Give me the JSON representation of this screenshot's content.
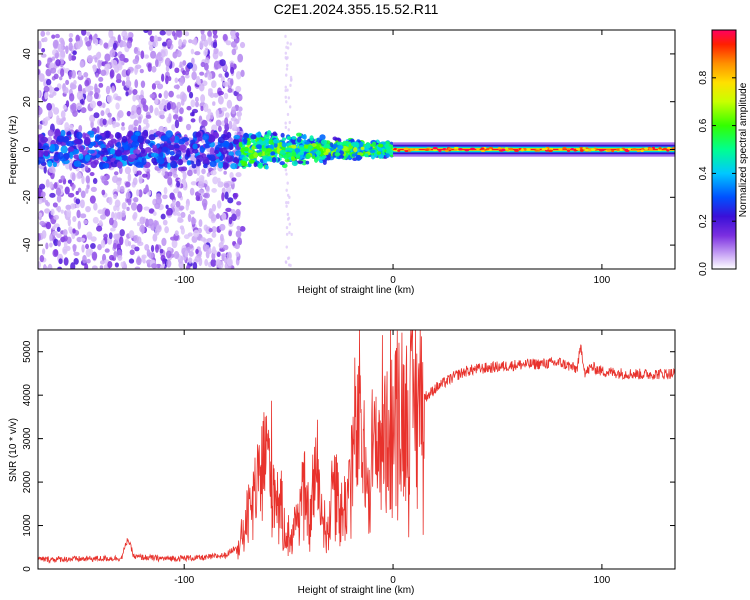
{
  "title": "C2E1.2024.355.15.52.R11",
  "chart_data": [
    {
      "type": "heatmap",
      "xlabel": "Height of straight line (km)",
      "ylabel": "Frequency (Hz)",
      "xlim": [
        -170,
        135
      ],
      "ylim": [
        -50,
        50
      ],
      "x_ticks": [
        -100,
        0,
        100
      ],
      "y_ticks": [
        -40,
        -20,
        0,
        20,
        40
      ],
      "colorbar": {
        "label": "Normalized spectral amplitude",
        "range": [
          0,
          1
        ],
        "ticks": [
          "0.0",
          "0.2",
          "0.4",
          "0.6",
          "0.8"
        ],
        "colors": [
          "#ffffff",
          "#c9a6f5",
          "#7b2fe0",
          "#3a10d8",
          "#0050ff",
          "#00c8ff",
          "#00ff90",
          "#33ff00",
          "#c8ff00",
          "#ffe000",
          "#ff9000",
          "#ff2000",
          "#ff0060"
        ]
      },
      "regions": [
        {
          "x": [
            -170,
            -73
          ],
          "freq_spread_hz": 50,
          "amplitude": 0.1
        },
        {
          "x": [
            -73,
            -30
          ],
          "freq_spread_hz": 8,
          "amplitude": 0.45
        },
        {
          "x": [
            -30,
            0
          ],
          "freq_spread_hz": 4,
          "amplitude": 0.6
        },
        {
          "x": [
            0,
            135
          ],
          "freq_spread_hz": 1,
          "amplitude": 0.95
        }
      ]
    },
    {
      "type": "line",
      "xlabel": "Height of straight line (km)",
      "ylabel": "SNR (10 * v/v)",
      "xlim": [
        -170,
        135
      ],
      "ylim": [
        0,
        5500
      ],
      "x_ticks": [
        -100,
        0,
        100
      ],
      "y_ticks": [
        0,
        1000,
        2000,
        3000,
        4000,
        5000
      ],
      "color": "#e8322c",
      "series": [
        {
          "x": [
            -170,
            -150,
            -130,
            -127,
            -124,
            -110,
            -90,
            -80,
            -73,
            -68,
            -64,
            -61,
            -58,
            -55,
            -52,
            -49,
            -46,
            -43,
            -40,
            -37,
            -34,
            -31,
            -28,
            -25,
            -22,
            -19,
            -16,
            -13,
            -10,
            -7,
            -4,
            -1,
            2,
            5,
            8,
            11,
            14,
            17,
            20,
            25,
            30,
            35,
            40,
            50,
            60,
            70,
            80,
            88,
            90,
            92,
            95,
            100,
            110,
            120,
            135
          ],
          "values": [
            220,
            230,
            250,
            700,
            280,
            240,
            260,
            320,
            600,
            1400,
            2000,
            2800,
            2200,
            1600,
            900,
            700,
            1200,
            1800,
            1000,
            2300,
            1300,
            800,
            2500,
            1200,
            1600,
            2800,
            3300,
            2000,
            2600,
            3000,
            3100,
            3400,
            3600,
            3500,
            3800,
            3900,
            3950,
            4000,
            4150,
            4300,
            4450,
            4550,
            4600,
            4650,
            4700,
            4720,
            4750,
            4600,
            5100,
            4500,
            4650,
            4550,
            4500,
            4480,
            4500
          ]
        }
      ]
    }
  ]
}
